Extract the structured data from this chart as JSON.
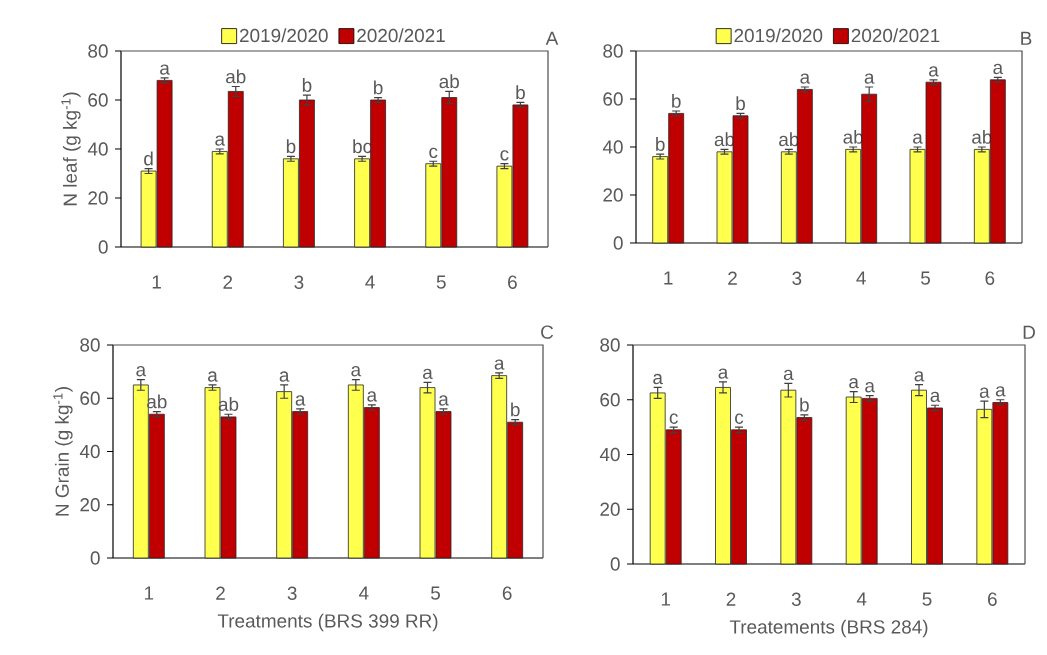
{
  "chart_data": [
    {
      "type": "bar",
      "categories": [
        "1",
        "2",
        "3",
        "4",
        "5",
        "6"
      ],
      "ylabel": "N leaf (g kg$^{-1}$)",
      "ylim": [
        0,
        80
      ],
      "yticks": [
        0,
        20,
        40,
        60,
        80
      ],
      "legend": "top",
      "annotations": [
        "A"
      ],
      "series": [
        {
          "name": "2019/2020",
          "color": "#ffff4d",
          "values": [
            31,
            39,
            36,
            36,
            34,
            33
          ],
          "errors": [
            1,
            1,
            1,
            1,
            1,
            1
          ],
          "value_labels": [
            "d",
            "a",
            "b",
            "bc",
            "c",
            "c"
          ]
        },
        {
          "name": "2020/2021",
          "color": "#c00000",
          "values": [
            68,
            63.5,
            60,
            60,
            61,
            58
          ],
          "errors": [
            1,
            2,
            2,
            1,
            2.5,
            1
          ],
          "value_labels": [
            "a",
            "ab",
            "b",
            "b",
            "ab",
            "b"
          ]
        }
      ]
    },
    {
      "type": "bar",
      "categories": [
        "1",
        "2",
        "3",
        "4",
        "5",
        "6"
      ],
      "ylim": [
        0,
        80
      ],
      "yticks": [
        0,
        20,
        40,
        60,
        80
      ],
      "legend": "top",
      "annotations": [
        "B"
      ],
      "series": [
        {
          "name": "2019/2020",
          "color": "#ffff4d",
          "values": [
            36,
            38,
            38,
            39,
            39,
            39
          ],
          "errors": [
            1,
            1,
            1,
            1,
            1,
            1
          ],
          "value_labels": [
            "b",
            "ab",
            "ab",
            "ab",
            "a",
            "ab"
          ]
        },
        {
          "name": "2020/2021",
          "color": "#c00000",
          "values": [
            54,
            53,
            64,
            62,
            67,
            68
          ],
          "errors": [
            1,
            1,
            1,
            3,
            1,
            1
          ],
          "value_labels": [
            "b",
            "b",
            "a",
            "a",
            "a",
            "a"
          ]
        }
      ]
    },
    {
      "type": "bar",
      "categories": [
        "1",
        "2",
        "3",
        "4",
        "5",
        "6"
      ],
      "ylabel": "N Grain (g kg$^{-1}$)",
      "xlabel": "Treatments (BRS 399 RR)",
      "ylim": [
        0,
        80
      ],
      "yticks": [
        0,
        20,
        40,
        60,
        80
      ],
      "annotations": [
        "C"
      ],
      "series": [
        {
          "color": "#ffff4d",
          "values": [
            65,
            64,
            62.5,
            65,
            64,
            68.5
          ],
          "errors": [
            2,
            1,
            2.5,
            2,
            2,
            1
          ],
          "value_labels": [
            "a",
            "a",
            "a",
            "a",
            "a",
            "a"
          ]
        },
        {
          "color": "#c00000",
          "values": [
            54,
            53,
            55,
            56.5,
            55,
            51
          ],
          "errors": [
            1,
            1,
            1,
            1,
            1,
            1
          ],
          "value_labels": [
            "ab",
            "ab",
            "a",
            "a",
            "a",
            "b"
          ]
        }
      ]
    },
    {
      "type": "bar",
      "categories": [
        "1",
        "2",
        "3",
        "4",
        "5",
        "6"
      ],
      "xlabel": "Treatements (BRS 284)",
      "ylim": [
        0,
        80
      ],
      "yticks": [
        0,
        20,
        40,
        60,
        80
      ],
      "annotations": [
        "D"
      ],
      "series": [
        {
          "color": "#ffff4d",
          "values": [
            62.5,
            64.5,
            63.5,
            61,
            63.5,
            56.5
          ],
          "errors": [
            2,
            2,
            2.5,
            2,
            2,
            3
          ],
          "value_labels": [
            "a",
            "a",
            "a",
            "a",
            "a",
            "a"
          ]
        },
        {
          "color": "#c00000",
          "values": [
            49,
            49,
            53.5,
            60.5,
            57,
            59
          ],
          "errors": [
            1,
            1,
            1,
            1,
            1,
            1
          ],
          "value_labels": [
            "c",
            "c",
            "b",
            "a",
            "a",
            "a"
          ]
        }
      ]
    }
  ]
}
